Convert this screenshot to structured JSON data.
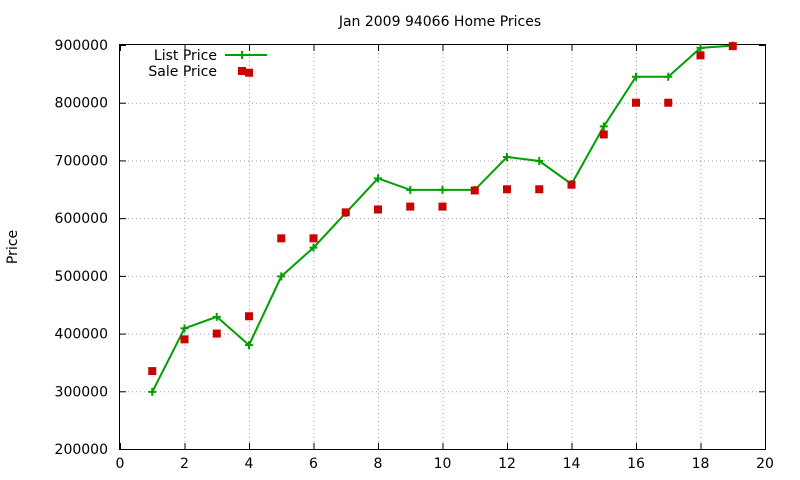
{
  "chart_data": {
    "type": "line",
    "title": "Jan 2009 94066 Home Prices",
    "xlabel": "",
    "ylabel": "Price",
    "xlim": [
      0,
      20
    ],
    "ylim": [
      200000,
      900000
    ],
    "x_ticks": [
      0,
      2,
      4,
      6,
      8,
      10,
      12,
      14,
      16,
      18,
      20
    ],
    "y_ticks": [
      200000,
      300000,
      400000,
      500000,
      600000,
      700000,
      800000,
      900000
    ],
    "grid": true,
    "legend_position": "top-left",
    "series": [
      {
        "name": "List Price",
        "style": "line-with-plus-markers",
        "color": "#00a000",
        "x": [
          1,
          2,
          3,
          4,
          5,
          6,
          7,
          8,
          9,
          10,
          11,
          12,
          13,
          14,
          15,
          16,
          17,
          18,
          19
        ],
        "values": [
          299000,
          409000,
          429000,
          380000,
          499000,
          549000,
          609000,
          669000,
          649000,
          649000,
          649000,
          706000,
          699000,
          659000,
          759000,
          845000,
          845000,
          895000,
          899000
        ]
      },
      {
        "name": "Sale Price",
        "style": "square-markers",
        "color": "#cc0000",
        "x": [
          1,
          2,
          3,
          4,
          4,
          5,
          6,
          7,
          8,
          9,
          10,
          11,
          12,
          13,
          14,
          15,
          16,
          17,
          18,
          19
        ],
        "values": [
          335000,
          390000,
          400000,
          430000,
          852000,
          565000,
          565000,
          610000,
          615000,
          620000,
          620000,
          648000,
          650000,
          650000,
          658000,
          745000,
          800000,
          800000,
          882000,
          898000
        ]
      }
    ]
  }
}
